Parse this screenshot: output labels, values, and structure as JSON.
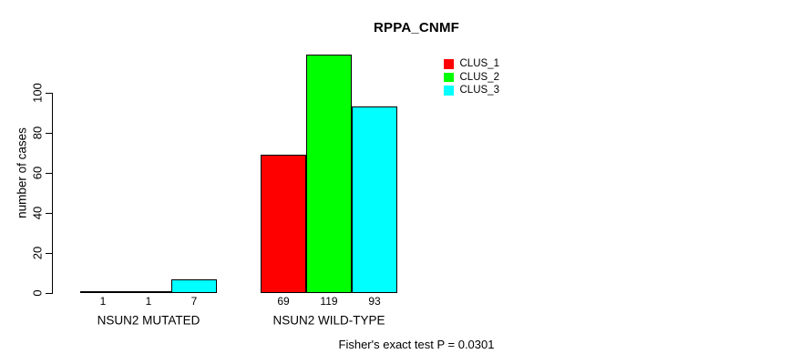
{
  "title": "RPPA_CNMF",
  "y_axis": {
    "label": "number of cases",
    "ticks": [
      0,
      20,
      40,
      60,
      80,
      100
    ]
  },
  "legend": {
    "items": [
      {
        "label": "CLUS_1",
        "color": "#FF0000"
      },
      {
        "label": "CLUS_2",
        "color": "#00FF00"
      },
      {
        "label": "CLUS_3",
        "color": "#00FFFF"
      }
    ]
  },
  "footer": "Fisher's exact test P = 0.0301",
  "chart_data": {
    "type": "bar",
    "title": "RPPA_CNMF",
    "xlabel": "",
    "ylabel": "number of cases",
    "ylim": [
      0,
      120
    ],
    "yticks": [
      0,
      20,
      40,
      60,
      80,
      100
    ],
    "grid": false,
    "legend_position": "top-right",
    "categories": [
      "NSUN2 MUTATED",
      "NSUN2 WILD-TYPE"
    ],
    "series": [
      {
        "name": "CLUS_1",
        "color": "#FF0000",
        "values": [
          1,
          69
        ]
      },
      {
        "name": "CLUS_2",
        "color": "#00FF00",
        "values": [
          1,
          119
        ]
      },
      {
        "name": "CLUS_3",
        "color": "#00FFFF",
        "values": [
          7,
          93
        ]
      }
    ],
    "bar_value_labels_shown": true,
    "annotation": "Fisher's exact test P = 0.0301"
  }
}
